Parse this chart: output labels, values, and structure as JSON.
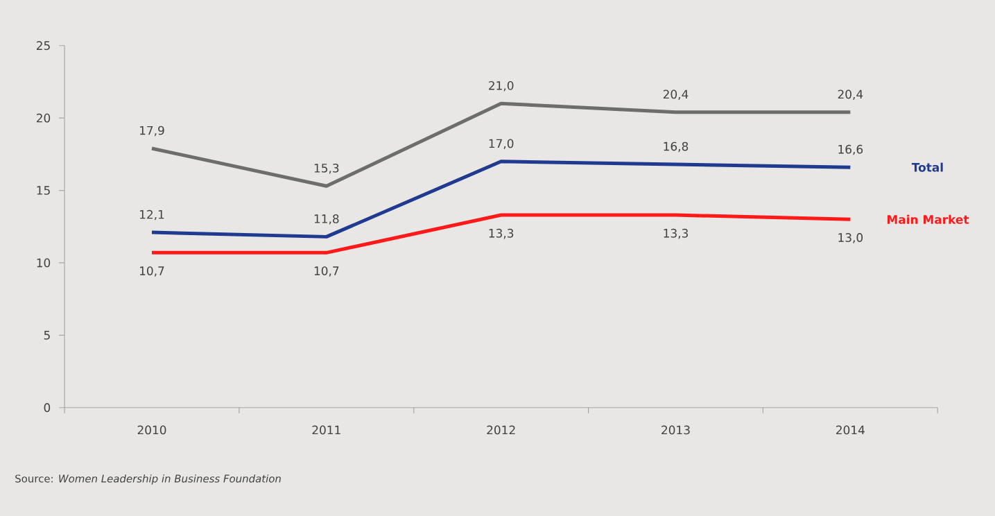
{
  "chart_data": {
    "type": "line",
    "categories": [
      "2010",
      "2011",
      "2012",
      "2013",
      "2014"
    ],
    "series": [
      {
        "color": "#6d6d6c",
        "values": [
          17.9,
          15.3,
          21.0,
          20.4,
          20.4
        ],
        "value_labels": [
          "17,9",
          "15,3",
          "21,0",
          "20,4",
          "20,4"
        ]
      },
      {
        "name": "Total",
        "color": "#1f3a8f",
        "values": [
          12.1,
          11.8,
          17.0,
          16.8,
          16.6
        ],
        "value_labels": [
          "12,1",
          "11,8",
          "17,0",
          "16,8",
          "16,6"
        ]
      },
      {
        "name": "Main Market",
        "color": "#ff1a1a",
        "values": [
          10.7,
          10.7,
          13.3,
          13.3,
          13.0
        ],
        "value_labels": [
          "10,7",
          "10,7",
          "13,3",
          "13,3",
          "13,0"
        ]
      }
    ],
    "ylim": [
      0,
      25
    ],
    "yticks": [
      0,
      5,
      10,
      15,
      20,
      25
    ],
    "grid": false,
    "legend": false,
    "marker": "none",
    "line_style": "solid",
    "annotations": [
      "Source: *Women Leadership in Business Foundation*"
    ]
  }
}
